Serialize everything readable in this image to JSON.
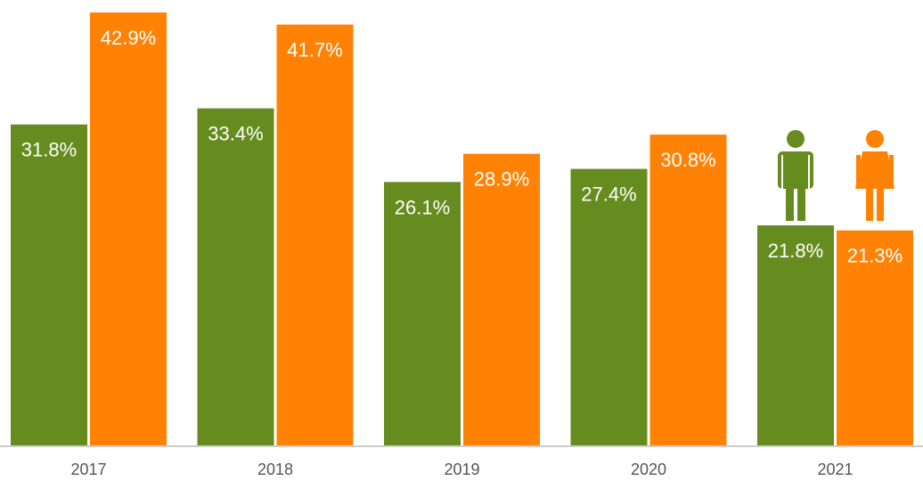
{
  "chart_data": {
    "type": "bar",
    "categories": [
      "2017",
      "2018",
      "2019",
      "2020",
      "2021"
    ],
    "series": [
      {
        "color": "#668c1f",
        "icon": "male-figure-icon",
        "values": [
          31.8,
          33.4,
          26.1,
          27.4,
          21.8
        ],
        "labels": [
          "31.8%",
          "33.4%",
          "26.1%",
          "27.4%",
          "21.8%"
        ]
      },
      {
        "color": "#ff8205",
        "icon": "female-figure-icon",
        "values": [
          42.9,
          41.7,
          28.9,
          30.8,
          21.3
        ],
        "labels": [
          "42.9%",
          "41.7%",
          "28.9%",
          "30.8%",
          "21.3%"
        ]
      }
    ],
    "ylim": [
      0,
      45
    ],
    "grid": false,
    "legend": "icons above 2021 bars",
    "axis_color": "#cccccc"
  }
}
